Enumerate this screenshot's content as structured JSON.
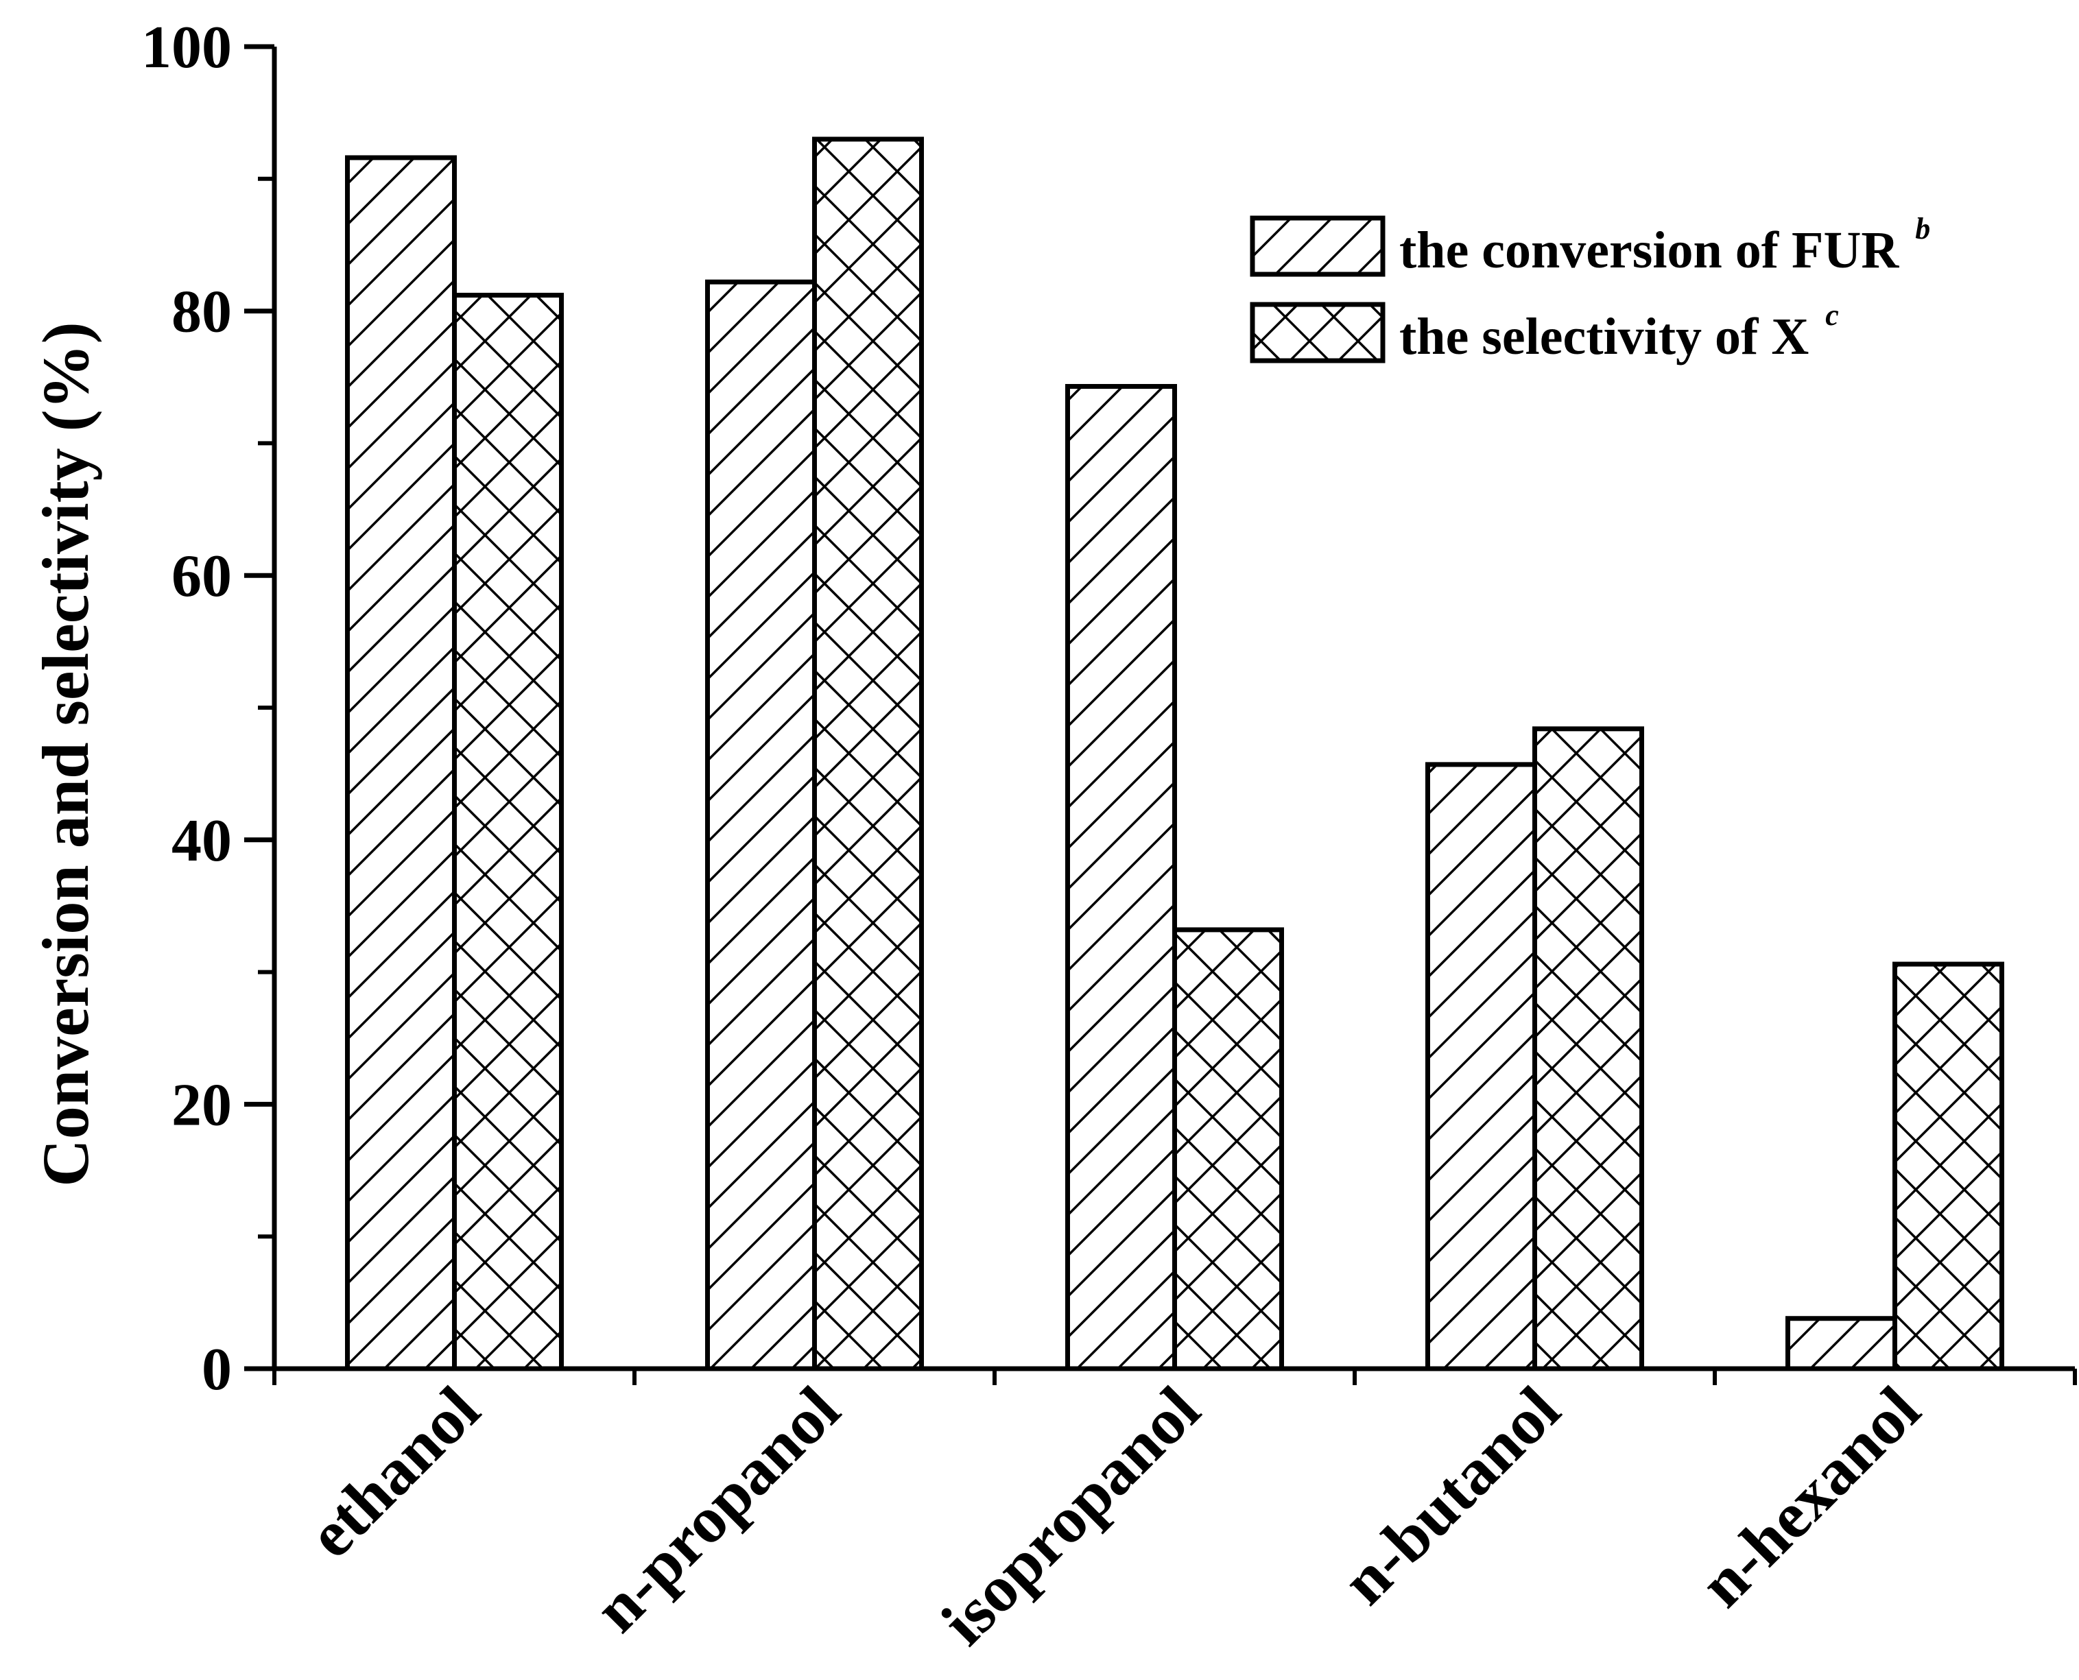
{
  "chart_data": {
    "type": "bar",
    "title": "",
    "xlabel": "",
    "ylabel": "Conversion and selectivity (%)",
    "ylim": [
      0,
      100
    ],
    "yticks": [
      0,
      20,
      40,
      60,
      80,
      100
    ],
    "categories": [
      "ethanol",
      "n-propanol",
      "isopropanol",
      "n-butanol",
      "n-hexanol"
    ],
    "series": [
      {
        "name": "the conversion of FUR",
        "superscript": "b",
        "pattern": "diagonal-hatch",
        "values": [
          91.6,
          82.2,
          74.3,
          45.7,
          3.8
        ]
      },
      {
        "name": "the selectivity of X",
        "superscript": "c",
        "pattern": "cross-hatch",
        "values": [
          81.2,
          93.0,
          33.2,
          48.4,
          30.6
        ]
      }
    ],
    "legend": "top-right",
    "grid": false
  }
}
